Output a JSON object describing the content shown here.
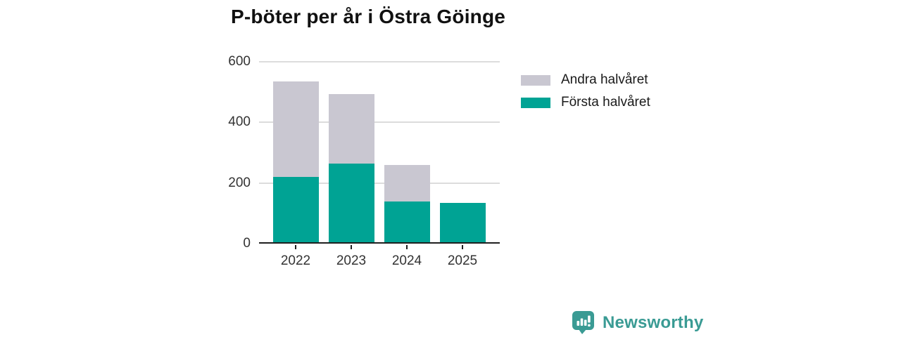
{
  "title": "P-böter per år i Östra Göinge",
  "colors": {
    "first_half": "#00a394",
    "second_half": "#c9c7d1",
    "axis": "#1f1f1f",
    "gridline": "#dcdcdc",
    "tick_text": "#333333",
    "title_text": "#111111",
    "brand": "#3a9b94"
  },
  "chart_data": {
    "type": "bar",
    "stacked": true,
    "title": "P-böter per år i Östra Göinge",
    "categories": [
      "2022",
      "2023",
      "2024",
      "2025"
    ],
    "series": [
      {
        "name": "Första halvåret",
        "color_key": "first_half",
        "values": [
          215,
          260,
          135,
          130
        ]
      },
      {
        "name": "Andra halvåret",
        "color_key": "second_half",
        "values": [
          315,
          230,
          120,
          0
        ]
      }
    ],
    "xlabel": "",
    "ylabel": "",
    "ylim": [
      0,
      600
    ],
    "yticks": [
      0,
      200,
      400,
      600
    ],
    "grid": true,
    "legend_position": "right"
  },
  "legend": {
    "items": [
      {
        "label": "Andra halvåret",
        "color_key": "second_half"
      },
      {
        "label": "Första halvåret",
        "color_key": "first_half"
      }
    ]
  },
  "footer": {
    "brand_name": "Newsworthy"
  }
}
